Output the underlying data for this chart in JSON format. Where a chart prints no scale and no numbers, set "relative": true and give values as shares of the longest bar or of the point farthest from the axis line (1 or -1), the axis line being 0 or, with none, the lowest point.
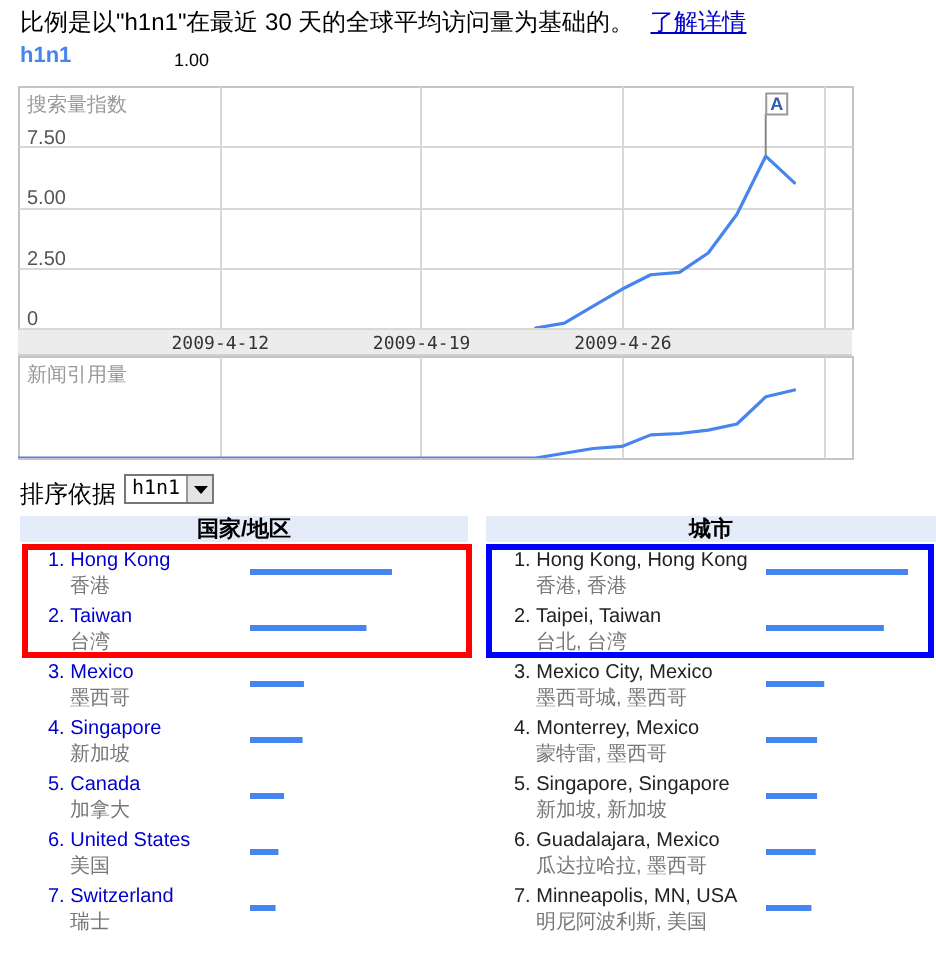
{
  "chart_data": [
    {
      "type": "line",
      "ylabel": "搜索量指数",
      "series": [
        {
          "name": "h1n1",
          "color": "#4684ee",
          "x": [
            "2009-04-23",
            "2009-04-24",
            "2009-04-25",
            "2009-04-26",
            "2009-04-27",
            "2009-04-28",
            "2009-04-29",
            "2009-04-30",
            "2009-05-01",
            "2009-05-02"
          ],
          "values": [
            0,
            0.2,
            0.9,
            1.6,
            2.2,
            2.3,
            3.1,
            4.7,
            7.1,
            6.0
          ]
        }
      ],
      "xlim": [
        "2009-04-05",
        "2009-05-04"
      ],
      "xticks": [
        {
          "value": "2009-04-12",
          "label": "2009-4-12"
        },
        {
          "value": "2009-04-19",
          "label": "2009-4-19"
        },
        {
          "value": "2009-04-26",
          "label": "2009-4-26"
        },
        {
          "value": "2009-05-03",
          "label": null
        }
      ],
      "ylim": [
        0,
        10
      ],
      "yticks": [
        0,
        {
          "value": 2.5,
          "label": "2.50"
        },
        {
          "value": 5,
          "label": "5.00"
        },
        {
          "value": 7.5,
          "label": "7.50"
        }
      ],
      "grid": true,
      "legend": "top left",
      "annotations": [
        "比例是以\"h1n1\"在最近 30 天的全球平均访问量为基础的。",
        "了解详情",
        "1.00",
        {
          "text": "A",
          "x": "2009-05-01",
          "y": 7.1
        }
      ]
    },
    {
      "type": "line",
      "ylabel": "新闻引用量",
      "relative": true,
      "series": [
        {
          "color": "#4684ee",
          "x": [
            "2009-04-05",
            "2009-04-23",
            "2009-04-24",
            "2009-04-25",
            "2009-04-26",
            "2009-04-27",
            "2009-04-28",
            "2009-04-29",
            "2009-04-30",
            "2009-05-01",
            "2009-05-02"
          ],
          "values": [
            0,
            0,
            0.07,
            0.14,
            0.17,
            0.34,
            0.36,
            0.41,
            0.5,
            0.9,
            1
          ]
        }
      ],
      "xlim": [
        "2009-04-05",
        "2009-05-04"
      ],
      "xticks": [
        {
          "value": "2009-04-12",
          "label": null
        },
        {
          "value": "2009-04-19",
          "label": null
        },
        {
          "value": "2009-04-26",
          "label": null
        },
        {
          "value": "2009-05-03",
          "label": null
        }
      ],
      "grid": "x",
      "tick_labels": false,
      "annotations": [
        "0"
      ]
    },
    {
      "type": "bar",
      "orientation": "horizontal",
      "relative": true,
      "title": "国家/地区",
      "categories": [
        "1. Hong Kong\n香港",
        "2. Taiwan\n台湾",
        "3. Mexico\n墨西哥",
        "4. Singapore\n新加坡",
        "5. Canada\n加拿大",
        "6. United States\n美国",
        "7. Switzerland\n瑞士"
      ],
      "values": [
        1,
        0.82,
        0.38,
        0.37,
        0.24,
        0.2,
        0.18
      ],
      "color": "#4684ee",
      "annotations": [
        "排序依据",
        "h1n1"
      ]
    },
    {
      "type": "bar",
      "orientation": "horizontal",
      "relative": true,
      "title": "城市",
      "categories": [
        "1. Hong Kong, Hong Kong\n香港, 香港",
        "2. Taipei, Taiwan\n台北, 台湾",
        "3. Mexico City, Mexico\n墨西哥城, 墨西哥",
        "4. Monterrey, Mexico\n蒙特雷, 墨西哥",
        "5. Singapore, Singapore\n新加坡, 新加坡",
        "6. Guadalajara, Mexico\n瓜达拉哈拉, 墨西哥",
        "7. Minneapolis, MN, USA\n明尼阿波利斯, 美国"
      ],
      "values": [
        1,
        0.83,
        0.41,
        0.36,
        0.36,
        0.35,
        0.32
      ],
      "color": "#4684ee"
    }
  ]
}
